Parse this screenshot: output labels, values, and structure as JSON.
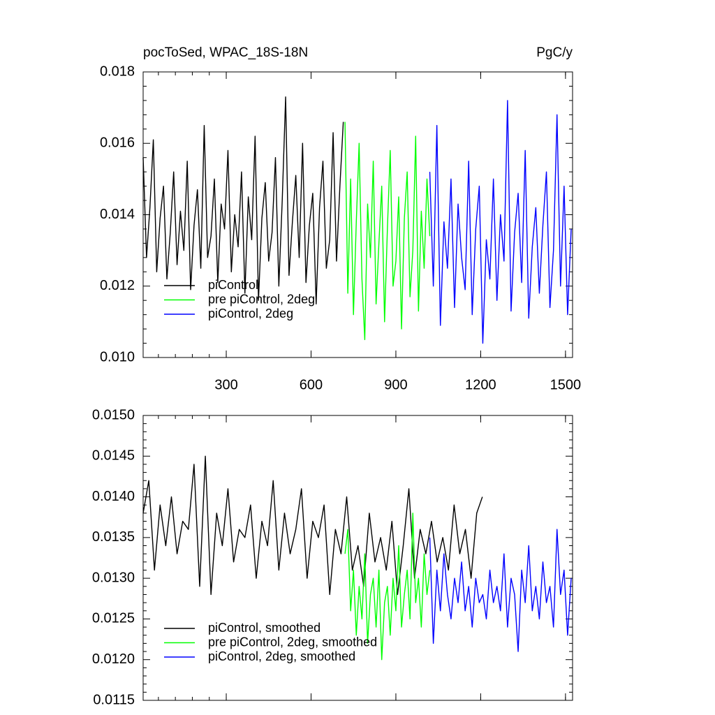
{
  "chart_data": [
    {
      "type": "line",
      "title": "pocToSed, WPAC_18S-18N",
      "units": "PgC/y",
      "xlim": [
        6,
        1525
      ],
      "ylim": [
        0.01,
        0.018
      ],
      "xtick_labels": true,
      "xticks": [
        300,
        600,
        900,
        1200,
        1500
      ],
      "yticks": [
        {
          "value": 0.01,
          "label": "0.010"
        },
        {
          "value": 0.012,
          "label": "0.012"
        },
        {
          "value": 0.014,
          "label": "0.014"
        },
        {
          "value": 0.016,
          "label": "0.016"
        },
        {
          "value": 0.018,
          "label": "0.018"
        }
      ],
      "legend": "lower left",
      "series": [
        {
          "name": "piControl",
          "color": "#000000",
          "x": [
            6,
            18,
            30,
            42,
            54,
            66,
            78,
            90,
            102,
            114,
            126,
            138,
            150,
            162,
            174,
            186,
            198,
            210,
            222,
            234,
            246,
            258,
            270,
            282,
            294,
            306,
            318,
            330,
            342,
            354,
            366,
            378,
            390,
            402,
            414,
            426,
            438,
            450,
            462,
            474,
            486,
            498,
            510,
            522,
            534,
            546,
            558,
            570,
            582,
            594,
            606,
            618,
            630,
            642,
            654,
            666,
            678,
            690,
            702,
            714
          ],
          "values": [
            0.0156,
            0.0128,
            0.0142,
            0.0161,
            0.0124,
            0.0139,
            0.0148,
            0.0122,
            0.0135,
            0.0152,
            0.0126,
            0.0141,
            0.013,
            0.0155,
            0.0119,
            0.0137,
            0.0147,
            0.0125,
            0.0165,
            0.0128,
            0.0134,
            0.015,
            0.0121,
            0.0143,
            0.0136,
            0.0158,
            0.0124,
            0.014,
            0.0131,
            0.0152,
            0.0118,
            0.0145,
            0.0133,
            0.0162,
            0.0116,
            0.0139,
            0.0149,
            0.0127,
            0.0135,
            0.0156,
            0.012,
            0.0144,
            0.0173,
            0.0123,
            0.0138,
            0.0151,
            0.0128,
            0.016,
            0.0121,
            0.0137,
            0.0146,
            0.0115,
            0.0142,
            0.0155,
            0.0125,
            0.0133,
            0.0163,
            0.0127,
            0.0148,
            0.0166
          ]
        },
        {
          "name": "pre piControl, 2deg",
          "color": "#00ff00",
          "x": [
            720,
            730,
            740,
            750,
            760,
            770,
            780,
            790,
            800,
            810,
            820,
            830,
            840,
            850,
            860,
            870,
            880,
            890,
            900,
            910,
            920,
            930,
            940,
            950,
            960,
            970,
            980,
            990,
            1000,
            1010,
            1020
          ],
          "values": [
            0.0166,
            0.0118,
            0.015,
            0.0112,
            0.0138,
            0.016,
            0.0122,
            0.0105,
            0.0143,
            0.0128,
            0.0155,
            0.0115,
            0.0132,
            0.0148,
            0.011,
            0.0136,
            0.0158,
            0.012,
            0.0127,
            0.0145,
            0.0108,
            0.0139,
            0.0152,
            0.0117,
            0.013,
            0.0162,
            0.0113,
            0.0141,
            0.0125,
            0.015,
            0.0134
          ]
        },
        {
          "name": "piControl, 2deg",
          "color": "#0000ff",
          "x": [
            1020,
            1032.5,
            1045,
            1057.5,
            1070,
            1082.5,
            1095,
            1107.5,
            1120,
            1132.5,
            1145,
            1157.5,
            1170,
            1182.5,
            1195,
            1207.5,
            1220,
            1232.5,
            1245,
            1257.5,
            1270,
            1282.5,
            1295,
            1307.5,
            1320,
            1332.5,
            1345,
            1357.5,
            1370,
            1382.5,
            1395,
            1407.5,
            1420,
            1432.5,
            1445,
            1457.5,
            1470,
            1482.5,
            1495,
            1507.5,
            1520
          ],
          "values": [
            0.0152,
            0.012,
            0.0165,
            0.0109,
            0.0138,
            0.0125,
            0.015,
            0.0114,
            0.0143,
            0.0128,
            0.0119,
            0.0155,
            0.0112,
            0.0136,
            0.0148,
            0.0104,
            0.0133,
            0.0122,
            0.015,
            0.0116,
            0.014,
            0.0127,
            0.0172,
            0.0113,
            0.0135,
            0.0146,
            0.0121,
            0.0158,
            0.0111,
            0.0131,
            0.0142,
            0.0118,
            0.0137,
            0.0152,
            0.0114,
            0.013,
            0.0168,
            0.012,
            0.0148,
            0.0112,
            0.0136
          ]
        }
      ]
    },
    {
      "type": "line",
      "xlim": [
        6,
        1525
      ],
      "ylim": [
        0.0115,
        0.015
      ],
      "xtick_labels": false,
      "xticks": [
        300,
        600,
        900,
        1200,
        1500
      ],
      "yticks": [
        0.0115,
        {
          "value": 0.012,
          "label": "0.0120"
        },
        0.0125,
        {
          "value": 0.013,
          "label": "0.0130"
        },
        0.0135,
        {
          "value": 0.014,
          "label": "0.0140"
        },
        0.0145,
        {
          "value": 0.015,
          "label": "0.0150"
        }
      ],
      "legend": "lower left",
      "series": [
        {
          "name": "piControl, smoothed",
          "color": "#000000",
          "x": [
            6,
            26,
            46,
            66,
            86,
            106,
            126,
            146,
            166,
            186,
            206,
            226,
            246,
            266,
            286,
            306,
            326,
            346,
            366,
            386,
            406,
            426,
            446,
            466,
            486,
            506,
            526,
            546,
            566,
            586,
            606,
            626,
            646,
            666,
            686,
            706,
            726,
            746,
            766,
            786,
            806,
            826,
            846,
            866,
            886,
            906,
            926,
            946,
            966,
            986,
            1006,
            1026,
            1046,
            1066,
            1086,
            1106,
            1126,
            1146,
            1166,
            1186,
            1206
          ],
          "values": [
            0.0138,
            0.0142,
            0.0131,
            0.0139,
            0.0134,
            0.014,
            0.0133,
            0.0137,
            0.0136,
            0.0144,
            0.0129,
            0.0145,
            0.0128,
            0.0138,
            0.0134,
            0.0141,
            0.0132,
            0.0136,
            0.0135,
            0.0139,
            0.013,
            0.0137,
            0.0134,
            0.0142,
            0.0131,
            0.0138,
            0.0133,
            0.0136,
            0.0141,
            0.013,
            0.0137,
            0.0135,
            0.0139,
            0.0128,
            0.0136,
            0.0133,
            0.014,
            0.0131,
            0.0134,
            0.0129,
            0.0138,
            0.0132,
            0.0135,
            0.0131,
            0.0137,
            0.0128,
            0.0134,
            0.0141,
            0.013,
            0.0136,
            0.0133,
            0.0137,
            0.0132,
            0.0135,
            0.0131,
            0.0139,
            0.0133,
            0.0136,
            0.013,
            0.0138,
            0.014
          ]
        },
        {
          "name": "pre piControl, 2deg, smoothed",
          "color": "#00ff00",
          "x": [
            720,
            730,
            740,
            750,
            760,
            770,
            780,
            790,
            800,
            810,
            820,
            830,
            840,
            850,
            860,
            870,
            880,
            890,
            900,
            910,
            920,
            930,
            940,
            950,
            960,
            970,
            980,
            990,
            1000,
            1010,
            1020
          ],
          "values": [
            0.0133,
            0.0136,
            0.0126,
            0.0131,
            0.0123,
            0.0129,
            0.0125,
            0.0133,
            0.0122,
            0.0128,
            0.013,
            0.0124,
            0.0131,
            0.012,
            0.0127,
            0.0129,
            0.0123,
            0.013,
            0.0126,
            0.0134,
            0.0124,
            0.0128,
            0.0131,
            0.0125,
            0.0138,
            0.0127,
            0.013,
            0.0124,
            0.0133,
            0.0128,
            0.0131
          ]
        },
        {
          "name": "piControl, 2deg, smoothed",
          "color": "#0000ff",
          "x": [
            1020,
            1032.5,
            1045,
            1057.5,
            1070,
            1082.5,
            1095,
            1107.5,
            1120,
            1132.5,
            1145,
            1157.5,
            1170,
            1182.5,
            1195,
            1207.5,
            1220,
            1232.5,
            1245,
            1257.5,
            1270,
            1282.5,
            1295,
            1307.5,
            1320,
            1332.5,
            1345,
            1357.5,
            1370,
            1382.5,
            1395,
            1407.5,
            1420,
            1432.5,
            1445,
            1457.5,
            1470,
            1482.5,
            1495,
            1507.5,
            1520
          ],
          "values": [
            0.0135,
            0.0122,
            0.0131,
            0.0126,
            0.0133,
            0.0128,
            0.0125,
            0.013,
            0.0127,
            0.0132,
            0.0126,
            0.0129,
            0.0124,
            0.013,
            0.0127,
            0.0128,
            0.0125,
            0.0131,
            0.0127,
            0.0129,
            0.0126,
            0.0133,
            0.0124,
            0.013,
            0.0128,
            0.0121,
            0.0131,
            0.0127,
            0.0134,
            0.0126,
            0.0129,
            0.0125,
            0.0132,
            0.0127,
            0.0129,
            0.0124,
            0.0136,
            0.0128,
            0.0131,
            0.0123,
            0.013
          ]
        }
      ]
    }
  ]
}
